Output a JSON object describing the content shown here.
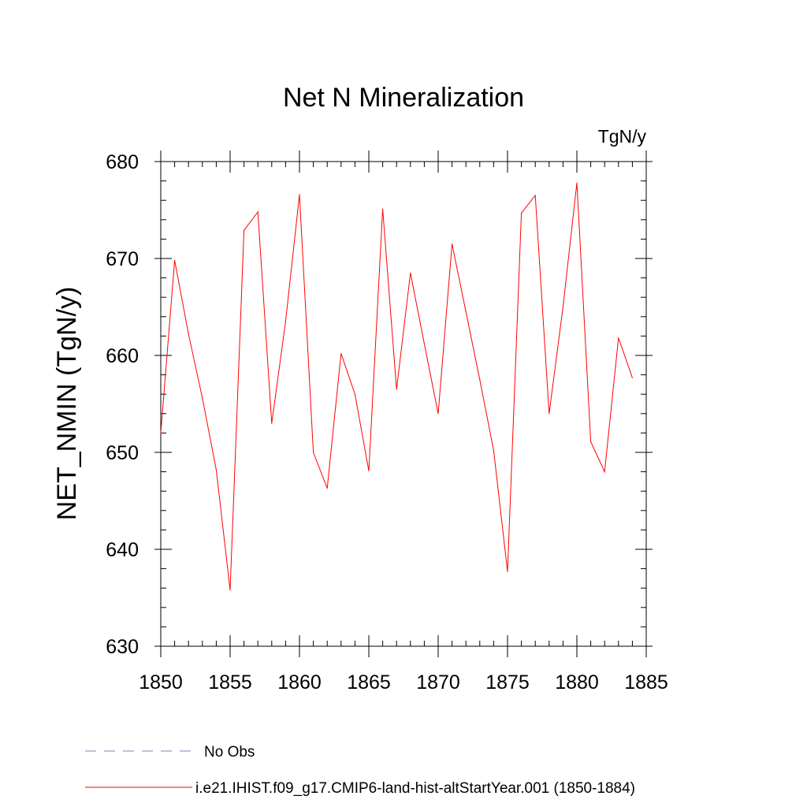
{
  "chart_data": {
    "type": "line",
    "title": "Net N Mineralization",
    "units_label": "TgN/y",
    "xlabel": "",
    "ylabel": "NET_NMIN  (TgN/y)",
    "xlim": [
      1850,
      1885
    ],
    "ylim": [
      630,
      680
    ],
    "x_ticks": [
      1850,
      1855,
      1860,
      1865,
      1870,
      1875,
      1880,
      1885
    ],
    "y_ticks": [
      630,
      640,
      650,
      660,
      670,
      680
    ],
    "grid": false,
    "legend_position": "bottom-left",
    "colors": {
      "series": "#ff0000",
      "no_obs": "#8a7fb8"
    },
    "legend": [
      {
        "label": "No Obs",
        "style": "dashed",
        "color": "#8a7fb8"
      },
      {
        "label": "i.e21.IHIST.f09_g17.CMIP6-land-hist-altStartYear.001 (1850-1884)",
        "style": "solid",
        "color": "#ff0000"
      }
    ],
    "series": [
      {
        "name": "i.e21.IHIST.f09_g17.CMIP6-land-hist-altStartYear.001 (1850-1884)",
        "x": [
          1850,
          1851,
          1852,
          1853,
          1854,
          1855,
          1856,
          1857,
          1858,
          1859,
          1860,
          1861,
          1862,
          1863,
          1864,
          1865,
          1866,
          1867,
          1868,
          1869,
          1870,
          1871,
          1872,
          1873,
          1874,
          1875,
          1876,
          1877,
          1878,
          1879,
          1880,
          1881,
          1882,
          1883,
          1884
        ],
        "y": [
          652.0,
          669.8,
          662.2,
          655.6,
          648.2,
          635.8,
          672.9,
          674.8,
          653.0,
          663.5,
          676.6,
          650.0,
          646.3,
          660.2,
          656.0,
          648.1,
          675.1,
          656.5,
          668.5,
          661.2,
          654.0,
          671.5,
          664.5,
          657.5,
          650.2,
          637.7,
          674.7,
          676.5,
          654.0,
          665.0,
          677.8,
          651.1,
          648.0,
          661.8,
          657.7
        ]
      }
    ]
  }
}
